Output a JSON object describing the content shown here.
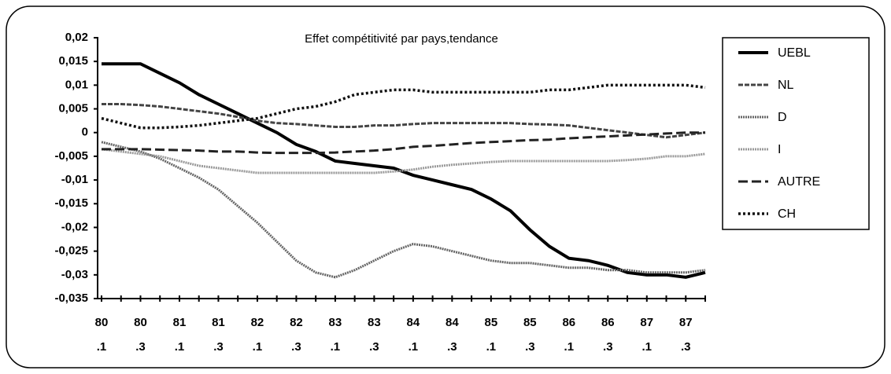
{
  "chart_data": {
    "type": "line",
    "title": "Effet compétitivité par pays,tendance",
    "categories": [
      [
        "80",
        ".1"
      ],
      null,
      [
        "80",
        ".3"
      ],
      null,
      [
        "81",
        ".1"
      ],
      null,
      [
        "81",
        ".3"
      ],
      null,
      [
        "82",
        ".1"
      ],
      null,
      [
        "82",
        ".3"
      ],
      null,
      [
        "83",
        ".1"
      ],
      null,
      [
        "83",
        ".3"
      ],
      null,
      [
        "84",
        ".1"
      ],
      null,
      [
        "84",
        ".3"
      ],
      null,
      [
        "85",
        ".1"
      ],
      null,
      [
        "85",
        ".3"
      ],
      null,
      [
        "86",
        ".1"
      ],
      null,
      [
        "86",
        ".3"
      ],
      null,
      [
        "87",
        ".1"
      ],
      null,
      [
        "87",
        ".3"
      ],
      null
    ],
    "ylim": [
      -0.035,
      0.02
    ],
    "yticks": [
      {
        "value": 0.02,
        "label": "0,02"
      },
      {
        "value": 0.015,
        "label": "0,015"
      },
      {
        "value": 0.01,
        "label": "0,01"
      },
      {
        "value": 0.005,
        "label": "0,005"
      },
      0,
      {
        "value": -0.005,
        "label": "-0,005"
      },
      {
        "value": -0.01,
        "label": "-0,01"
      },
      {
        "value": -0.015,
        "label": "-0,015"
      },
      {
        "value": -0.02,
        "label": "-0,02"
      },
      {
        "value": -0.025,
        "label": "-0,025"
      },
      {
        "value": -0.03,
        "label": "-0,03"
      },
      {
        "value": -0.035,
        "label": "-0,035"
      }
    ],
    "grid": false,
    "legend": "right",
    "series": [
      {
        "name": "UEBL",
        "color": "#000000",
        "dash": "solid",
        "values": [
          0.0145,
          0.0145,
          0.0145,
          0.0125,
          0.0105,
          0.008,
          0.006,
          0.004,
          0.002,
          0,
          -0.0025,
          -0.004,
          -0.006,
          -0.0065,
          -0.007,
          -0.0075,
          -0.009,
          -0.01,
          -0.011,
          -0.012,
          -0.014,
          -0.0165,
          -0.0205,
          -0.024,
          -0.0265,
          -0.027,
          -0.028,
          -0.0295,
          -0.03,
          -0.03,
          -0.0305,
          -0.0295
        ]
      },
      {
        "name": "NL",
        "color": "#444444",
        "dash": "dashed",
        "values": [
          0.006,
          0.006,
          0.0058,
          0.0055,
          0.005,
          0.0045,
          0.004,
          0.0033,
          0.0025,
          0.002,
          0.0018,
          0.0015,
          0.0012,
          0.0012,
          0.0015,
          0.0015,
          0.0018,
          0.002,
          0.002,
          0.002,
          0.002,
          0.002,
          0.0018,
          0.0017,
          0.0015,
          0.001,
          0.0005,
          0,
          -0.0005,
          -0.001,
          -0.0005,
          0
        ]
      },
      {
        "name": "D",
        "color": "#666666",
        "dash": "dotted",
        "values": [
          -0.002,
          -0.003,
          -0.004,
          -0.0055,
          -0.0075,
          -0.0095,
          -0.012,
          -0.0155,
          -0.019,
          -0.023,
          -0.027,
          -0.0295,
          -0.0305,
          -0.029,
          -0.027,
          -0.025,
          -0.0235,
          -0.024,
          -0.025,
          -0.026,
          -0.027,
          -0.0275,
          -0.0275,
          -0.028,
          -0.0285,
          -0.0285,
          -0.029,
          -0.029,
          -0.0295,
          -0.0295,
          -0.0295,
          -0.029
        ]
      },
      {
        "name": "I",
        "color": "#999999",
        "dash": "dotted",
        "values": [
          -0.0035,
          -0.004,
          -0.0045,
          -0.005,
          -0.006,
          -0.007,
          -0.0075,
          -0.008,
          -0.0085,
          -0.0085,
          -0.0085,
          -0.0085,
          -0.0085,
          -0.0085,
          -0.0085,
          -0.0082,
          -0.0078,
          -0.0072,
          -0.0068,
          -0.0065,
          -0.0062,
          -0.006,
          -0.006,
          -0.006,
          -0.006,
          -0.006,
          -0.006,
          -0.0058,
          -0.0055,
          -0.005,
          -0.005,
          -0.0045
        ]
      },
      {
        "name": "AUTRE",
        "color": "#222222",
        "dash": "longdash",
        "values": [
          -0.0035,
          -0.0035,
          -0.0035,
          -0.0036,
          -0.0037,
          -0.0038,
          -0.004,
          -0.004,
          -0.0042,
          -0.0043,
          -0.0043,
          -0.0043,
          -0.0042,
          -0.004,
          -0.0038,
          -0.0035,
          -0.003,
          -0.0028,
          -0.0025,
          -0.0022,
          -0.002,
          -0.0018,
          -0.0016,
          -0.0015,
          -0.0012,
          -0.001,
          -0.0008,
          -0.0006,
          -0.0004,
          -0.0002,
          0,
          0
        ]
      },
      {
        "name": "CH",
        "color": "#111111",
        "dash": "dots",
        "values": [
          0.003,
          0.002,
          0.001,
          0.001,
          0.0012,
          0.0015,
          0.002,
          0.0025,
          0.003,
          0.004,
          0.005,
          0.0055,
          0.0065,
          0.008,
          0.0085,
          0.009,
          0.009,
          0.0085,
          0.0085,
          0.0085,
          0.0085,
          0.0085,
          0.0085,
          0.009,
          0.009,
          0.0095,
          0.01,
          0.01,
          0.01,
          0.01,
          0.01,
          0.0095
        ]
      }
    ]
  }
}
